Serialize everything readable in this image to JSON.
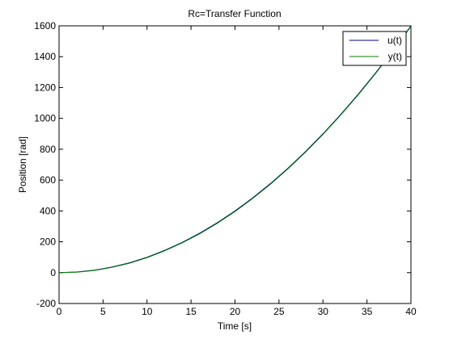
{
  "chart_data": {
    "type": "line",
    "title": "Rc=Transfer Function",
    "xlabel": "Time [s]",
    "ylabel": "Position [rad]",
    "xlim": [
      0,
      40
    ],
    "ylim": [
      -200,
      1600
    ],
    "x_ticks": [
      0,
      5,
      10,
      15,
      20,
      25,
      30,
      35,
      40
    ],
    "y_ticks": [
      -200,
      0,
      200,
      400,
      600,
      800,
      1000,
      1200,
      1400,
      1600
    ],
    "x_tick_labels": [
      "0",
      "5",
      "10",
      "15",
      "20",
      "25",
      "30",
      "35",
      "40"
    ],
    "y_tick_labels": [
      "-200",
      "0",
      "200",
      "400",
      "600",
      "800",
      "1000",
      "1200",
      "1400",
      "1600"
    ],
    "grid": false,
    "legend_position": "top-right",
    "series": [
      {
        "name": "u(t)",
        "color": "#000080",
        "x": [
          0,
          2,
          4,
          6,
          8,
          10,
          12,
          14,
          16,
          18,
          20,
          22,
          24,
          26,
          28,
          30,
          32,
          34,
          36,
          38,
          40
        ],
        "y": [
          0,
          4,
          16,
          36,
          64,
          100,
          144,
          196,
          256,
          324,
          400,
          484,
          576,
          676,
          784,
          900,
          1024,
          1156,
          1296,
          1444,
          1600
        ]
      },
      {
        "name": "y(t)",
        "color": "#008000",
        "x": [
          0,
          2,
          4,
          6,
          8,
          10,
          12,
          14,
          16,
          18,
          20,
          22,
          24,
          26,
          28,
          30,
          32,
          34,
          36,
          38,
          40
        ],
        "y": [
          0,
          3,
          14,
          34,
          61,
          97,
          141,
          193,
          252,
          320,
          396,
          480,
          572,
          672,
          780,
          896,
          1020,
          1152,
          1292,
          1440,
          1596
        ]
      }
    ]
  }
}
